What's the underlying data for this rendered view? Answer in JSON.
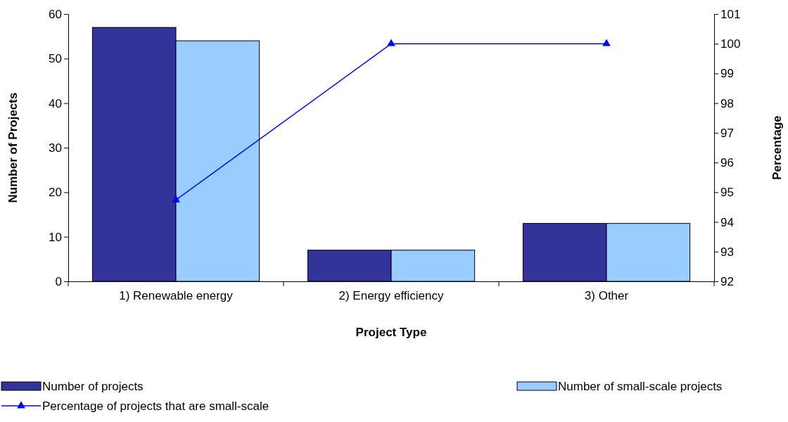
{
  "chart_data": {
    "type": "bar",
    "xlabel": "Project Type",
    "ylabel": "Number of Projects",
    "y2label": "Percentage",
    "categories": [
      "1) Renewable energy",
      "2) Energy efficiency",
      "3) Other"
    ],
    "series": [
      {
        "name": "Number of projects",
        "color": "#333399",
        "values": [
          57,
          7,
          13
        ]
      },
      {
        "name": "Number of small-scale projects",
        "color": "#99ccff",
        "values": [
          54,
          7,
          13
        ]
      },
      {
        "name": "Percentage of projects that are small-scale",
        "type": "line",
        "axis": "y2",
        "color": "#0000ff",
        "values": [
          94.74,
          100,
          100
        ],
        "marker": "triangle",
        "line_style": "solid"
      }
    ],
    "ylim": [
      0,
      60
    ],
    "yticks": [
      0,
      10,
      20,
      30,
      40,
      50,
      60
    ],
    "y2lim": [
      92,
      101
    ],
    "y2ticks": [
      92,
      93,
      94,
      95,
      96,
      97,
      98,
      99,
      100,
      101
    ],
    "grid": false,
    "legend": "bottom"
  }
}
